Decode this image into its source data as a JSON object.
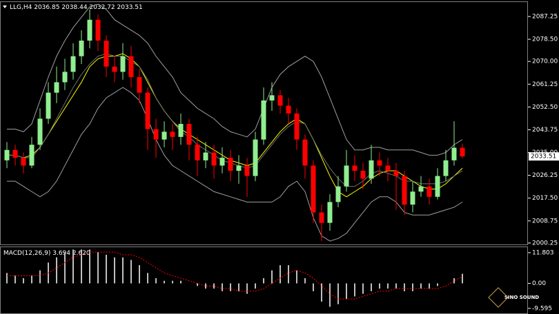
{
  "chart_data": [
    {
      "type": "candlestick",
      "title": "LLG,H4",
      "ylim": [
        1999.7,
        2092.8
      ],
      "yticks": [
        {
          "value": 2087.25,
          "label": "2087.25"
        },
        {
          "value": 2078.5,
          "label": "2078.50"
        },
        {
          "value": 2070,
          "label": "2070.00"
        },
        {
          "value": 2061.25,
          "label": "2061.25"
        },
        {
          "value": 2052.5,
          "label": "2052.50"
        },
        {
          "value": 2043.75,
          "label": "2043.75"
        },
        {
          "value": 2035,
          "label": "2035.00"
        },
        {
          "value": 2026.25,
          "label": "2026.25"
        },
        {
          "value": 2017.5,
          "label": "2017.50"
        },
        {
          "value": 2008.75,
          "label": "2008.75"
        },
        {
          "value": 2000.25,
          "label": "2000.25"
        }
      ],
      "up_color": "#90ee90",
      "down_color": "#ff0000",
      "open": [
        2032,
        2036,
        2033,
        2030,
        2038,
        2048,
        2058,
        2062,
        2066,
        2072,
        2078,
        2086,
        2078,
        2068,
        2066,
        2072,
        2064,
        2058,
        2044,
        2040,
        2043,
        2041,
        2046,
        2038,
        2032,
        2035,
        2030,
        2033,
        2028,
        2030,
        2026,
        2040,
        2055,
        2057,
        2053,
        2050,
        2040,
        2030,
        2012,
        2008,
        2016,
        2022,
        2030,
        2028,
        2025,
        2032,
        2030,
        2028,
        2026,
        2015,
        2020,
        2022,
        2018,
        2026,
        2032,
        2036.85
      ],
      "high": [
        2039,
        2038,
        2035,
        2041,
        2052,
        2062,
        2068,
        2071,
        2077,
        2082,
        2090,
        2088,
        2080,
        2072,
        2077,
        2076,
        2067,
        2060,
        2048,
        2047,
        2046,
        2050,
        2048,
        2041,
        2039,
        2038,
        2037,
        2036,
        2034,
        2033,
        2043,
        2060,
        2062,
        2059,
        2056,
        2052,
        2042,
        2032,
        2015,
        2019,
        2026,
        2036,
        2034,
        2031,
        2038,
        2035,
        2033,
        2031,
        2028,
        2024,
        2026,
        2025,
        2029,
        2036,
        2047,
        2038.44
      ],
      "low": [
        2029,
        2030,
        2027,
        2029,
        2036,
        2046,
        2054,
        2059,
        2063,
        2069,
        2075,
        2074,
        2064,
        2062,
        2063,
        2060,
        2054,
        2036,
        2033,
        2037,
        2036,
        2038,
        2032,
        2026,
        2029,
        2025,
        2027,
        2024,
        2023,
        2018,
        2024,
        2038,
        2051,
        2050,
        2046,
        2036,
        2025,
        2008,
        2001,
        2005,
        2014,
        2020,
        2024,
        2021,
        2023,
        2026,
        2024,
        2013,
        2011,
        2012,
        2018,
        2015,
        2017,
        2024,
        2030,
        2032.72
      ],
      "close": [
        2036,
        2033,
        2030,
        2038,
        2048,
        2058,
        2062,
        2066,
        2072,
        2078,
        2086,
        2078,
        2068,
        2066,
        2072,
        2064,
        2058,
        2044,
        2040,
        2043,
        2041,
        2046,
        2038,
        2032,
        2035,
        2030,
        2033,
        2028,
        2030,
        2026,
        2040,
        2055,
        2057,
        2053,
        2050,
        2040,
        2030,
        2012,
        2008,
        2016,
        2022,
        2030,
        2028,
        2025,
        2032,
        2030,
        2028,
        2026,
        2015,
        2020,
        2022,
        2018,
        2026,
        2032,
        2036.85,
        2033.51
      ],
      "lines": [
        {
          "color": "#ffff00",
          "values": [
            2034,
            2034,
            2033,
            2034,
            2037,
            2042,
            2047,
            2052,
            2057,
            2062,
            2068,
            2071,
            2072,
            2072,
            2073,
            2071,
            2068,
            2062,
            2056,
            2051,
            2047,
            2044,
            2042,
            2040,
            2038,
            2036,
            2034,
            2032,
            2031,
            2030,
            2031,
            2035,
            2039,
            2043,
            2046,
            2048,
            2046,
            2040,
            2033,
            2026,
            2020,
            2018,
            2020,
            2022,
            2025,
            2027,
            2028,
            2028,
            2026,
            2024,
            2022,
            2021,
            2021,
            2023,
            2026,
            2029
          ]
        },
        {
          "color": "#a0a0a0",
          "values": [
            2044,
            2044,
            2043,
            2046,
            2055,
            2064,
            2072,
            2078,
            2083,
            2087,
            2091,
            2092,
            2090,
            2086,
            2084,
            2082,
            2080,
            2077,
            2072,
            2068,
            2064,
            2058,
            2055,
            2052,
            2050,
            2048,
            2045,
            2043,
            2042,
            2041,
            2044,
            2052,
            2060,
            2065,
            2068,
            2070,
            2072,
            2070,
            2064,
            2056,
            2048,
            2040,
            2036,
            2036,
            2037,
            2037,
            2036,
            2036,
            2036,
            2036,
            2035,
            2034,
            2034,
            2035,
            2038,
            2040
          ]
        },
        {
          "color": "#707070",
          "values": [
            2034,
            2034,
            2033,
            2033,
            2037,
            2042,
            2048,
            2054,
            2060,
            2065,
            2069,
            2072,
            2073,
            2072,
            2072,
            2070,
            2068,
            2063,
            2056,
            2051,
            2047,
            2043,
            2041,
            2038,
            2036,
            2034,
            2032,
            2031,
            2030,
            2029,
            2030,
            2034,
            2038,
            2042,
            2045,
            2047,
            2046,
            2040,
            2034,
            2029,
            2025,
            2022,
            2022,
            2024,
            2027,
            2028,
            2027,
            2026,
            2024,
            2024,
            2023,
            2023,
            2023,
            2024,
            2026,
            2028
          ]
        },
        {
          "color": "#a0a0a0",
          "values": [
            2024,
            2024,
            2022,
            2020,
            2018,
            2020,
            2024,
            2030,
            2036,
            2042,
            2046,
            2052,
            2056,
            2058,
            2060,
            2058,
            2055,
            2048,
            2040,
            2034,
            2030,
            2028,
            2026,
            2024,
            2022,
            2020,
            2019,
            2018,
            2017,
            2016,
            2016,
            2016,
            2016,
            2018,
            2022,
            2024,
            2020,
            2010,
            2003,
            2001,
            2002,
            2004,
            2008,
            2012,
            2016,
            2018,
            2018,
            2016,
            2012,
            2011,
            2011,
            2011,
            2012,
            2013,
            2014,
            2016
          ]
        }
      ]
    },
    {
      "type": "macd",
      "title": "MACD(12,26,9)",
      "ylim": [
        -11.5,
        13.9
      ],
      "yticks": [
        11.803,
        {
          "value": 0,
          "label": "0.00"
        },
        -9.595
      ],
      "legend_values": [
        {
          "value": 3.694,
          "label": "3.694"
        },
        {
          "value": 2.62,
          "label": "2.620"
        }
      ],
      "series": [
        {
          "color": "#c0c0c0",
          "values": [
            4,
            3,
            2,
            3,
            5,
            8,
            10,
            12,
            13,
            13,
            13,
            12,
            11,
            10,
            10,
            9,
            7,
            4,
            2,
            1,
            1,
            1,
            0,
            -1,
            -2,
            -2,
            -3,
            -3,
            -3,
            -4,
            -2,
            2,
            5,
            7,
            7,
            5,
            2,
            -3,
            -7,
            -9,
            -8,
            -6,
            -5,
            -4,
            -3,
            -2,
            -2,
            -2,
            -3,
            -3,
            -2,
            -2,
            -1,
            0,
            2,
            3.694
          ]
        },
        {
          "color": "#ff0000",
          "values": [
            3,
            3,
            3,
            3,
            3,
            4,
            6,
            8,
            10,
            11,
            12,
            12,
            12,
            12,
            11,
            11,
            10,
            8,
            6,
            4,
            3,
            2,
            1,
            0,
            -1,
            -1,
            -2,
            -2,
            -3,
            -3,
            -3,
            -2,
            0,
            2,
            4,
            5,
            4,
            2,
            -1,
            -4,
            -6,
            -6,
            -6,
            -5,
            -4,
            -3,
            -3,
            -2,
            -2,
            -2,
            -2,
            -2,
            -2,
            -1,
            1,
            2.62
          ]
        }
      ]
    }
  ],
  "watermark": "SINO SOUND"
}
